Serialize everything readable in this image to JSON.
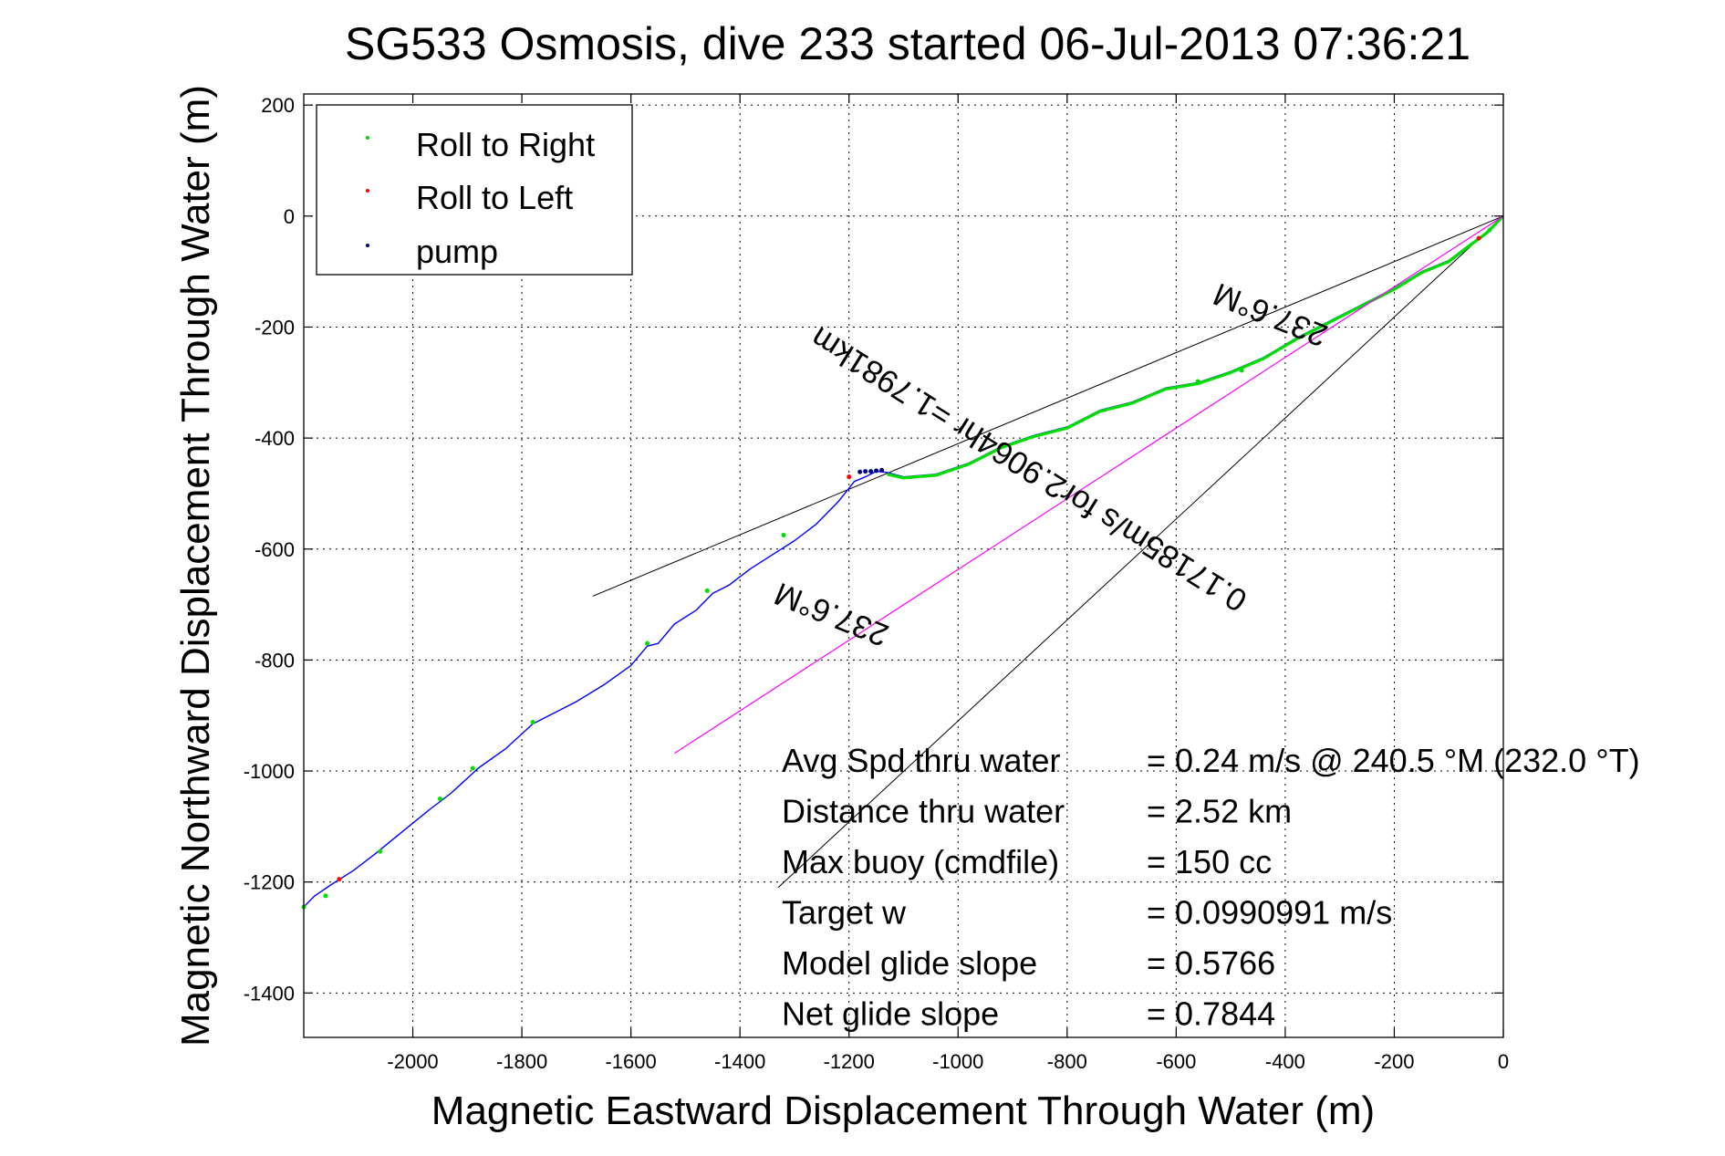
{
  "chart_data": {
    "type": "line",
    "title": "SG533 Osmosis, dive 233 started 06-Jul-2013 07:36:21",
    "xlabel": "Magnetic Eastward Displacement Through Water (m)",
    "ylabel": "Magnetic Northward Displacement Through Water (m)",
    "xlim": [
      -2200,
      0
    ],
    "ylim": [
      -1480,
      220
    ],
    "xticks": [
      -2000,
      -1800,
      -1600,
      -1400,
      -1200,
      -1000,
      -800,
      -600,
      -400,
      -200,
      0
    ],
    "yticks": [
      200,
      0,
      -200,
      -400,
      -600,
      -800,
      -1000,
      -1200,
      -1400
    ],
    "grid": true,
    "legend": {
      "placement": "top-left",
      "entries": [
        {
          "label": "Roll to Right",
          "color": "#00dd00"
        },
        {
          "label": "Roll to Left",
          "color": "#ff0000"
        },
        {
          "label": "pump",
          "color": "#000080"
        }
      ]
    },
    "series": [
      {
        "color": "#0000ff",
        "x": [
          0,
          -30,
          -60,
          -100,
          -150,
          -200,
          -260,
          -320,
          -380,
          -440,
          -500,
          -560,
          -620,
          -680,
          -740,
          -800,
          -860,
          -920,
          -980,
          -1040,
          -1100,
          -1130,
          -1150,
          -1170,
          -1190,
          -1220,
          -1260,
          -1300,
          -1340,
          -1380,
          -1420,
          -1450,
          -1480,
          -1520,
          -1550,
          -1570,
          -1600,
          -1650,
          -1700,
          -1750,
          -1780,
          -1830,
          -1880,
          -1930,
          -1970,
          -2020,
          -2070,
          -2110,
          -2150,
          -2180,
          -2200
        ],
        "y": [
          0,
          -30,
          -50,
          -80,
          -100,
          -130,
          -160,
          -190,
          -220,
          -255,
          -280,
          -300,
          -310,
          -335,
          -350,
          -380,
          -395,
          -415,
          -445,
          -465,
          -470,
          -462,
          -460,
          -470,
          -478,
          -515,
          -555,
          -585,
          -610,
          -635,
          -665,
          -680,
          -710,
          -735,
          -770,
          -775,
          -810,
          -845,
          -875,
          -900,
          -915,
          -960,
          -995,
          -1040,
          -1070,
          -1110,
          -1150,
          -1180,
          -1205,
          -1225,
          -1245
        ]
      },
      {
        "color": "#00dd00",
        "x": [
          0,
          -30,
          -60,
          -100,
          -150,
          -200,
          -260,
          -320,
          -380,
          -440,
          -500,
          -560,
          -620,
          -680,
          -740,
          -800,
          -860,
          -920,
          -980,
          -1040,
          -1100,
          -1130
        ],
        "y": [
          0,
          -30,
          -52,
          -82,
          -102,
          -132,
          -162,
          -192,
          -222,
          -257,
          -282,
          -302,
          -312,
          -337,
          -352,
          -382,
          -397,
          -417,
          -447,
          -467,
          -472,
          -465
        ]
      },
      {
        "color": "#ff00ff",
        "x": [
          0,
          -1520
        ],
        "y": [
          0,
          -968
        ]
      }
    ],
    "reference_lines": [
      {
        "color": "#000000",
        "x": [
          0,
          -1670
        ],
        "y": [
          0,
          -685
        ]
      },
      {
        "color": "#000000",
        "x": [
          0,
          -1330
        ],
        "y": [
          0,
          -1210
        ]
      }
    ],
    "markers": {
      "roll_right": {
        "color": "#00dd00",
        "x": [
          -25,
          -480,
          -560,
          -1320,
          -1460,
          -1570,
          -1780,
          -1890,
          -1950,
          -2060,
          -2160,
          -2200
        ],
        "y": [
          -25,
          -278,
          -298,
          -575,
          -675,
          -770,
          -912,
          -995,
          -1050,
          -1145,
          -1225,
          -1245
        ]
      },
      "roll_left": {
        "color": "#ff0000",
        "x": [
          -45,
          -1200,
          -2135
        ],
        "y": [
          -40,
          -470,
          -1195
        ]
      },
      "pump": {
        "color": "#000080",
        "x": [
          -1140,
          -1150,
          -1160,
          -1170,
          -1180
        ],
        "y": [
          -458,
          -459,
          -460,
          -460,
          -461
        ]
      }
    },
    "annotations": [
      {
        "text": "237.6°M",
        "x": -420,
        "y": -160,
        "rotation": 202
      },
      {
        "text": "237.6°M",
        "x": -1225,
        "y": -700,
        "rotation": 202
      },
      {
        "text": "0.17185m/s for2.9064hr =1.7981km",
        "x": -860,
        "y": -440,
        "rotation": 212
      }
    ],
    "stats": [
      {
        "label": "Avg Spd thru water",
        "value": "=  0.24 m/s @ 240.5 °M (232.0 °T)"
      },
      {
        "label": "Distance thru water",
        "value": "=  2.52 km"
      },
      {
        "label": "Max buoy (cmdfile)",
        "value": "= 150 cc"
      },
      {
        "label": "Target w",
        "value": "= 0.0990991 m/s"
      },
      {
        "label": "Model glide slope",
        "value": "= 0.5766"
      },
      {
        "label": "Net glide slope",
        "value": "= 0.7844"
      }
    ]
  }
}
